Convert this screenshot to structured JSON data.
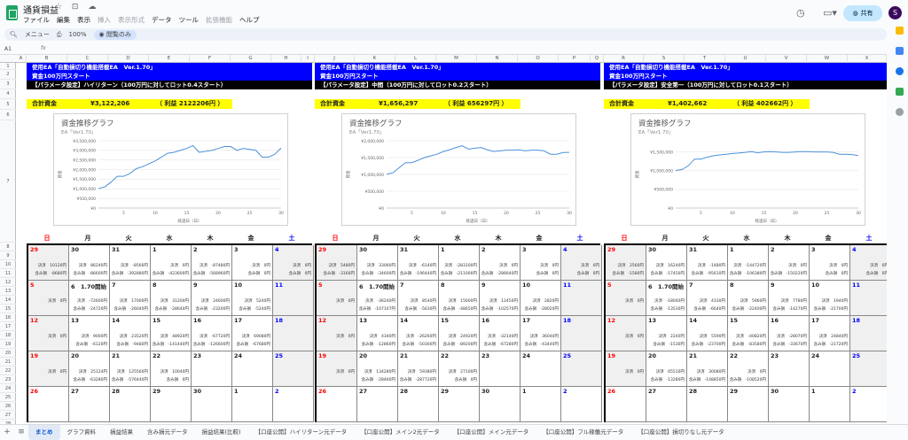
{
  "app": {
    "title": "通貨損益",
    "menu": [
      "ファイル",
      "編集",
      "表示",
      "挿入",
      "表示形式",
      "データ",
      "ツール",
      "拡張機能",
      "ヘルプ"
    ],
    "menu_dim": [
      false,
      false,
      false,
      true,
      true,
      false,
      false,
      true,
      false
    ],
    "share": "共有",
    "avatar": "S"
  },
  "toolbar": {
    "search": "メニュー",
    "zoom": "100%",
    "view_only": "閲覧のみ"
  },
  "formula": {
    "cell_ref": "A1",
    "fx": "fx"
  },
  "columns": [
    "A",
    "B",
    "C",
    "D",
    "E",
    "F",
    "G",
    "H",
    "I",
    "J",
    "K",
    "L",
    "M",
    "N",
    "O",
    "P",
    "Q",
    "R",
    "S",
    "T",
    "U",
    "V",
    "W",
    "X"
  ],
  "rows": [
    "1",
    "2",
    "3",
    "4",
    "5",
    "6",
    "7",
    "8",
    "9",
    "10",
    "11",
    "12",
    "13",
    "14",
    "15",
    "16",
    "17",
    "18",
    "19",
    "20",
    "21",
    "22",
    "23",
    "24",
    "25",
    "26",
    "27",
    "28"
  ],
  "weekdays": [
    "日",
    "月",
    "火",
    "水",
    "木",
    "金",
    "土"
  ],
  "panels": [
    {
      "line1": "使用EA「自動損切り機能搭載EA　Ver.1.70」",
      "line2": "資金100万円スタート",
      "line3": "【パラメータ設定】ハイリターン（100万円に対してロット0.4スタート）",
      "total_label": "合計資金",
      "total_value": "¥3,122,206",
      "profit": "（ 利益 2122206円 ）",
      "chart_data": {
        "type": "line",
        "title": "資金推移グラフ",
        "subtitle": "EA「Ver1.70」",
        "xlabel": "経過日（日）",
        "ylabel": "資金",
        "ylim": [
          0,
          3500000
        ],
        "yticks": [
          "¥0",
          "¥500,000",
          "¥1,000,000",
          "¥1,500,000",
          "¥2,000,000",
          "¥2,500,000",
          "¥3,000,000",
          "¥3,500,000"
        ],
        "xticks": [
          "5",
          "10",
          "15",
          "20",
          "25",
          "30"
        ],
        "x": [
          1,
          2,
          3,
          4,
          5,
          6,
          7,
          8,
          9,
          10,
          11,
          12,
          13,
          14,
          15,
          16,
          17,
          18,
          19,
          20,
          21,
          22,
          23,
          24,
          25,
          26,
          27,
          28,
          29,
          30
        ],
        "values": [
          1010000,
          1100000,
          1350000,
          1650000,
          1650000,
          1800000,
          2050000,
          2150000,
          2300000,
          2450000,
          2650000,
          2850000,
          2900000,
          3000000,
          3100000,
          3250000,
          2900000,
          2950000,
          3000000,
          3100000,
          3200000,
          3200000,
          3000000,
          3100000,
          3050000,
          3000000,
          2650000,
          2650000,
          2800000,
          3120000
        ]
      }
    },
    {
      "line1": "使用EA「自動損切り機能搭載EA　Ver.1.70」",
      "line2": "資金100万円スタート",
      "line3": "【パラメータ設定】中間（100万円に対してロット0.2スタート）",
      "total_label": "合計資金",
      "total_value": "¥1,656,297",
      "profit": "（ 利益 656297円 ）",
      "chart_data": {
        "type": "line",
        "title": "資金推移グラフ",
        "subtitle": "EA「Ver1.70」",
        "xlabel": "経過日（日）",
        "ylabel": "資金",
        "ylim": [
          0,
          2000000
        ],
        "yticks": [
          "¥0",
          "¥500,000",
          "¥1,000,000",
          "¥1,500,000",
          "¥2,000,000"
        ],
        "xticks": [
          "5",
          "10",
          "15",
          "20",
          "25",
          "30"
        ],
        "x": [
          1,
          2,
          3,
          4,
          5,
          6,
          7,
          8,
          9,
          10,
          11,
          12,
          13,
          14,
          15,
          16,
          17,
          18,
          19,
          20,
          21,
          22,
          23,
          24,
          25,
          26,
          27,
          28,
          29,
          30
        ],
        "values": [
          1000000,
          1050000,
          1200000,
          1350000,
          1350000,
          1420000,
          1500000,
          1550000,
          1600000,
          1680000,
          1730000,
          1800000,
          1850000,
          1750000,
          1780000,
          1800000,
          1730000,
          1680000,
          1700000,
          1720000,
          1720000,
          1730000,
          1700000,
          1720000,
          1720000,
          1700000,
          1600000,
          1600000,
          1650000,
          1656000
        ]
      }
    },
    {
      "line1": "使用EA「自動損切り機能搭載EA　Ver.1.70」",
      "line2": "資金100万円スタート",
      "line3": "【パラメータ設定】安全第一（100万円に対してロット0.1スタート）",
      "total_label": "合計資金",
      "total_value": "¥1,402,662",
      "profit": "（ 利益 402662円 ）",
      "chart_data": {
        "type": "line",
        "title": "資金推移グラフ",
        "subtitle": "EA「Ver1.70」",
        "xlabel": "経過日（日）",
        "ylabel": "資金",
        "ylim": [
          0,
          1800000
        ],
        "yticks": [
          "¥0",
          "¥500,000",
          "¥1,000,000",
          "¥1,500,000"
        ],
        "xticks": [
          "5",
          "10",
          "15",
          "20",
          "25",
          "30"
        ],
        "x": [
          1,
          2,
          3,
          4,
          5,
          6,
          7,
          8,
          9,
          10,
          11,
          12,
          13,
          14,
          15,
          16,
          17,
          18,
          19,
          20,
          21,
          22,
          23,
          24,
          25,
          26,
          27,
          28,
          29,
          30
        ],
        "values": [
          1005000,
          1030000,
          1130000,
          1310000,
          1310000,
          1360000,
          1400000,
          1420000,
          1440000,
          1460000,
          1470000,
          1490000,
          1510000,
          1480000,
          1500000,
          1510000,
          1500000,
          1490000,
          1490000,
          1500000,
          1510000,
          1510000,
          1500000,
          1500000,
          1500000,
          1490000,
          1440000,
          1440000,
          1430000,
          1402662
        ]
      }
    }
  ],
  "calendar": [
    {
      "weeks": [
        [
          {
            "d": "29",
            "c": "red",
            "a": "決済　10120円",
            "b": "含み損　-8680円"
          },
          {
            "d": "30",
            "a": "決済　86240円",
            "b": "含み損　-86600円"
          },
          {
            "d": "31",
            "a": "決済　-8560円",
            "b": "含み損　-392880円"
          },
          {
            "d": "1",
            "a": "決済　0円",
            "b": "含み損　-423600円"
          },
          {
            "d": "2",
            "a": "決済　-87480円",
            "b": "含み損　-568960円"
          },
          {
            "d": "3",
            "a": "決済　0円",
            "b": "含み損　0円"
          },
          {
            "d": "4",
            "c": "blue",
            "a": "決済　0円",
            "b": "含み損　0円"
          }
        ],
        [
          {
            "d": "5",
            "c": "red",
            "a": "決済　0円",
            "b": ""
          },
          {
            "d": "6　1.70開始",
            "a": "決済　-72600円",
            "b": "含み損　-24720円"
          },
          {
            "d": "7",
            "a": "決済　17000円",
            "b": "含み損　-26040円"
          },
          {
            "d": "8",
            "a": "決済　31200円",
            "b": "含み損　-28640円"
          },
          {
            "d": "9",
            "a": "決済　24600円",
            "b": "含み損　-23200円"
          },
          {
            "d": "10",
            "a": "決済　5240円",
            "b": "含み損　-5240円"
          },
          {
            "d": "11",
            "c": "blue",
            "a": "",
            "b": ""
          }
        ],
        [
          {
            "d": "12",
            "c": "red",
            "a": "決済　0円",
            "b": ""
          },
          {
            "d": "13",
            "a": "決済　9000円",
            "b": "含み損　-6120円"
          },
          {
            "d": "14",
            "a": "決済　23520円",
            "b": "含み損　-9480円"
          },
          {
            "d": "15",
            "a": "決済　48920円",
            "b": "含み損　-141440円"
          },
          {
            "d": "16",
            "a": "決済　-67720円",
            "b": "含み損　-126600円"
          },
          {
            "d": "17",
            "a": "決済　69080円",
            "b": "含み損　-67680円"
          },
          {
            "d": "18",
            "c": "blue",
            "a": "",
            "b": ""
          }
        ],
        [
          {
            "d": "19",
            "c": "red",
            "a": "決済　0円",
            "b": ""
          },
          {
            "d": "20",
            "a": "決済　25124円",
            "b": "含み損　-63280円"
          },
          {
            "d": "21",
            "a": "決済　125560円",
            "b": "含み損　-576440円"
          },
          {
            "d": "22",
            "a": "決済　10040円",
            "b": "含み損　0円"
          },
          {
            "d": "23",
            "a": "",
            "b": ""
          },
          {
            "d": "24",
            "a": "",
            "b": ""
          },
          {
            "d": "25",
            "c": "blue",
            "a": "",
            "b": ""
          }
        ],
        [
          {
            "d": "26",
            "c": "red",
            "a": "",
            "b": ""
          },
          {
            "d": "27",
            "a": "",
            "b": ""
          },
          {
            "d": "28",
            "a": "",
            "b": ""
          },
          {
            "d": "29",
            "a": "",
            "b": ""
          },
          {
            "d": "30",
            "a": "",
            "b": ""
          },
          {
            "d": "1",
            "a": "",
            "b": ""
          },
          {
            "d": "2",
            "c": "blue",
            "a": "",
            "b": ""
          }
        ]
      ]
    },
    {
      "weeks": [
        [
          {
            "d": "29",
            "c": "red",
            "a": "決済　5480円",
            "b": "含み損　-3160円"
          },
          {
            "d": "30",
            "a": "決済　33060円",
            "b": "含み損　-34600円"
          },
          {
            "d": "31",
            "a": "決済　-6140円",
            "b": "含み損　-196440円"
          },
          {
            "d": "1",
            "a": "決済　-283100円",
            "b": "含み損　-211000円"
          },
          {
            "d": "2",
            "a": "決済　0円",
            "b": "含み損　-286640円"
          },
          {
            "d": "3",
            "a": "決済　0円",
            "b": "含み損　0円"
          },
          {
            "d": "4",
            "c": "blue",
            "a": "決済　0円",
            "b": "含み損　0円"
          }
        ],
        [
          {
            "d": "5",
            "c": "red",
            "a": "決済　0円",
            "b": ""
          },
          {
            "d": "6　1.70開始",
            "a": "決済　-36240円",
            "b": "含み損　-107107円"
          },
          {
            "d": "7",
            "a": "決済　8540円",
            "b": "含み損　-5630円"
          },
          {
            "d": "8",
            "a": "決済　15600円",
            "b": "含み損　-48650円"
          },
          {
            "d": "9",
            "a": "決済　12450円",
            "b": "含み損　-102570円"
          },
          {
            "d": "10",
            "a": "決済　2820円",
            "b": "含み損　-28020円"
          },
          {
            "d": "11",
            "c": "blue",
            "a": "",
            "b": ""
          }
        ],
        [
          {
            "d": "12",
            "c": "red",
            "a": "決済　0円",
            "b": ""
          },
          {
            "d": "13",
            "a": "決済　4340円",
            "b": "含み損　-12860円"
          },
          {
            "d": "14",
            "a": "決済　-26260円",
            "b": "含み損　-50300円"
          },
          {
            "d": "15",
            "a": "決済　24920円",
            "b": "含み損　-89200円"
          },
          {
            "d": "16",
            "a": "決済　-32140円",
            "b": "含み損　-67280円"
          },
          {
            "d": "17",
            "a": "決済　36040円",
            "b": "含み損　-43440円"
          },
          {
            "d": "18",
            "c": "blue",
            "a": "",
            "b": ""
          }
        ],
        [
          {
            "d": "19",
            "c": "red",
            "a": "決済　0円",
            "b": ""
          },
          {
            "d": "20",
            "a": "決済　134280円",
            "b": "含み損　-28460円"
          },
          {
            "d": "21",
            "a": "決済　59380円",
            "b": "含み損　-287720円"
          },
          {
            "d": "22",
            "a": "決済　27100円",
            "b": "含み損　0円"
          },
          {
            "d": "23",
            "a": "",
            "b": ""
          },
          {
            "d": "24",
            "a": "",
            "b": ""
          },
          {
            "d": "25",
            "c": "blue",
            "a": "",
            "b": ""
          }
        ],
        [
          {
            "d": "26",
            "c": "red",
            "a": "",
            "b": ""
          },
          {
            "d": "27",
            "a": "",
            "b": ""
          },
          {
            "d": "28",
            "a": "",
            "b": ""
          },
          {
            "d": "29",
            "a": "",
            "b": ""
          },
          {
            "d": "30",
            "a": "",
            "b": ""
          },
          {
            "d": "1",
            "a": "",
            "b": ""
          },
          {
            "d": "2",
            "c": "blue",
            "a": "",
            "b": ""
          }
        ]
      ]
    },
    {
      "weeks": [
        [
          {
            "d": "29",
            "c": "red",
            "a": "決済　2560円",
            "b": "含み損　-1580円"
          },
          {
            "d": "30",
            "a": "決済　16240円",
            "b": "含み損　-17450円"
          },
          {
            "d": "31",
            "a": "決済　-1480円",
            "b": "含み損　-95610円"
          },
          {
            "d": "1",
            "a": "決済　-144720円",
            "b": "含み損　-106380円"
          },
          {
            "d": "2",
            "a": "決済　0円",
            "b": "含み損　-150220円"
          },
          {
            "d": "3",
            "a": "決済　0円",
            "b": "含み損　0円"
          },
          {
            "d": "4",
            "c": "blue",
            "a": "決済　0円",
            "b": "含み損　0円"
          }
        ],
        [
          {
            "d": "5",
            "c": "red",
            "a": "決済　0円",
            "b": ""
          },
          {
            "d": "6　1.70開始",
            "a": "決済　-18040円",
            "b": "含み損　-13530円"
          },
          {
            "d": "7",
            "a": "決済　4330円",
            "b": "含み損　-6640円"
          },
          {
            "d": "8",
            "a": "決済　5960円",
            "b": "含み損　-22400円"
          },
          {
            "d": "9",
            "a": "決済　7780円",
            "b": "含み損　-14270円"
          },
          {
            "d": "10",
            "a": "決済　1940円",
            "b": "含み損　-21700円"
          },
          {
            "d": "11",
            "c": "blue",
            "a": "",
            "b": ""
          }
        ],
        [
          {
            "d": "12",
            "c": "red",
            "a": "決済　0円",
            "b": ""
          },
          {
            "d": "13",
            "a": "決済　2240円",
            "b": "含み損　-1530円"
          },
          {
            "d": "14",
            "a": "決済　5590円",
            "b": "含み損　-23700円"
          },
          {
            "d": "15",
            "a": "決済　-40820円",
            "b": "含み損　-83580円"
          },
          {
            "d": "16",
            "a": "決済　-28070円",
            "b": "含み損　-33670円"
          },
          {
            "d": "17",
            "a": "決済　24840円",
            "b": "含み損　-21720円"
          },
          {
            "d": "18",
            "c": "blue",
            "a": "",
            "b": ""
          }
        ],
        [
          {
            "d": "19",
            "c": "red",
            "a": "決済　0円",
            "b": ""
          },
          {
            "d": "20",
            "a": "決済　65510円",
            "b": "含み損　-13280円"
          },
          {
            "d": "21",
            "a": "決済　30080円",
            "b": "含み損　-148850円"
          },
          {
            "d": "22",
            "a": "決済　0円",
            "b": "含み損　-108520円"
          },
          {
            "d": "23",
            "a": "",
            "b": ""
          },
          {
            "d": "24",
            "a": "",
            "b": ""
          },
          {
            "d": "25",
            "c": "blue",
            "a": "",
            "b": ""
          }
        ],
        [
          {
            "d": "26",
            "c": "red",
            "a": "",
            "b": ""
          },
          {
            "d": "27",
            "a": "",
            "b": ""
          },
          {
            "d": "28",
            "a": "",
            "b": ""
          },
          {
            "d": "29",
            "a": "",
            "b": ""
          },
          {
            "d": "30",
            "a": "",
            "b": ""
          },
          {
            "d": "1",
            "a": "",
            "b": ""
          },
          {
            "d": "2",
            "c": "blue",
            "a": "",
            "b": ""
          }
        ]
      ]
    }
  ],
  "tabs": [
    "まとめ",
    "グラフ資料",
    "損益結果",
    "含み損元データ",
    "損益結果(比較)",
    "【口座公開】ハイリターン元データ",
    "【口座公開】メイン2元データ",
    "【口座公開】メイン元データ",
    "【口座公開】フル稼働元データ",
    "【口座公開】損切りなし元データ"
  ],
  "colors": {
    "header_blue": "#0000ff",
    "total_yellow": "#ffff00",
    "line": "#4a90d9",
    "sunday": "#ff0000",
    "saturday": "#0000ff"
  }
}
